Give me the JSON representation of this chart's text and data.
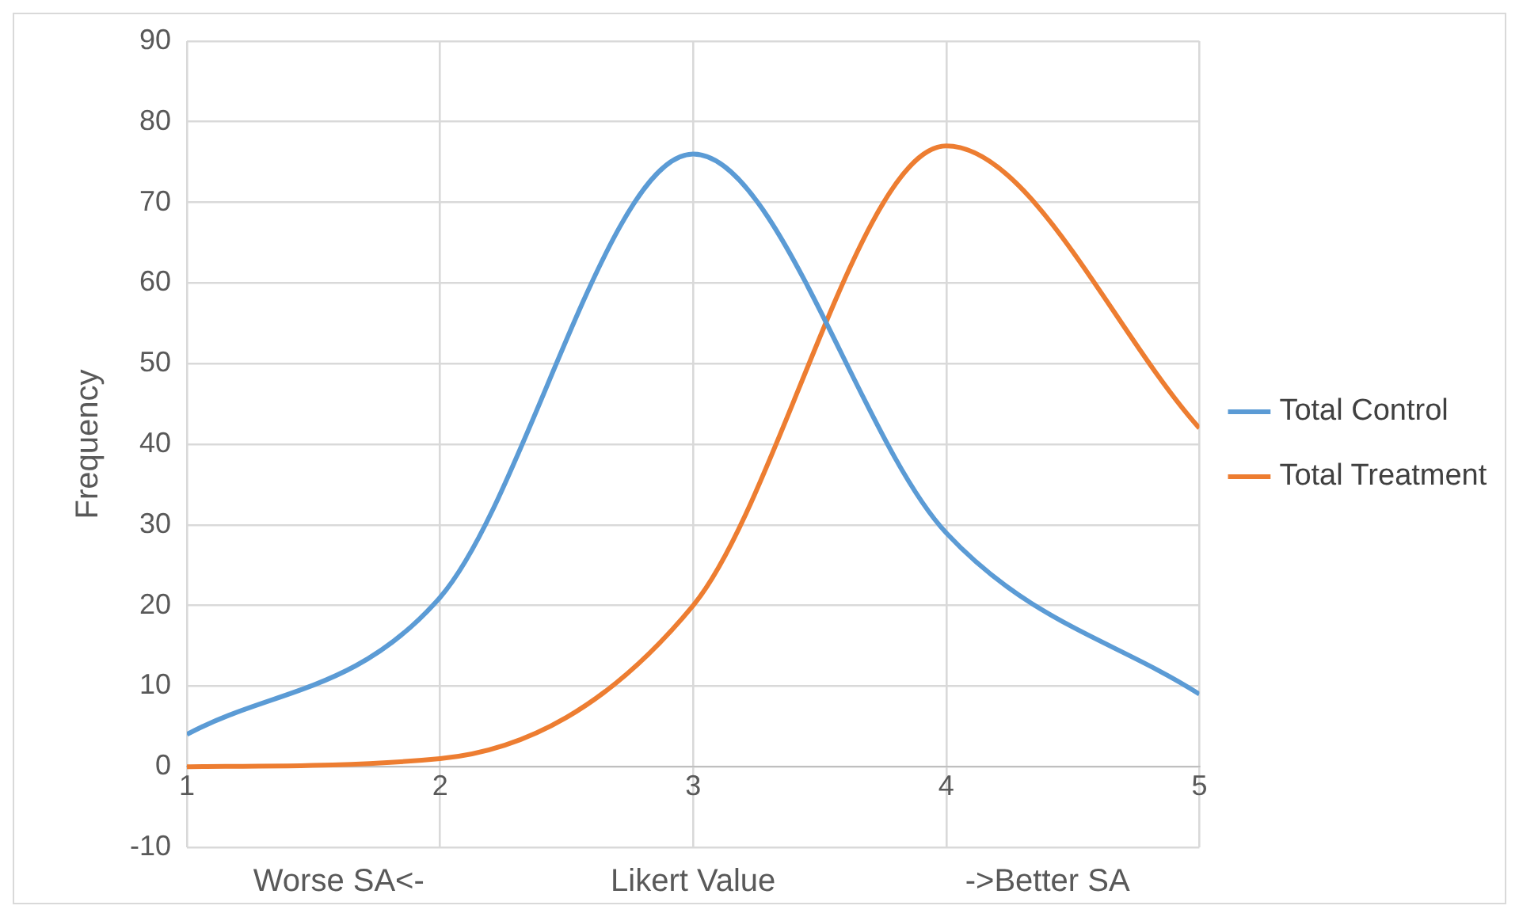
{
  "chart_data": {
    "type": "line",
    "xlabel": "Likert Value",
    "ylabel": "Frequency",
    "annotations": [
      "Worse SA<-",
      "->Better SA"
    ],
    "x": [
      1,
      2,
      3,
      4,
      5
    ],
    "series": [
      {
        "name": "Total Control",
        "color": "#5b9bd5",
        "values": [
          4,
          21,
          76,
          29,
          9
        ]
      },
      {
        "name": "Total Treatment",
        "color": "#ed7d31",
        "values": [
          0,
          1,
          20,
          77,
          42
        ]
      }
    ],
    "xlim": [
      1,
      5
    ],
    "xticks": [
      1,
      2,
      3,
      4,
      5
    ],
    "ylim": [
      -10,
      90
    ],
    "yticks": [
      -10,
      0,
      10,
      20,
      30,
      40,
      50,
      60,
      70,
      80,
      90
    ],
    "grid": true,
    "legend": "right",
    "marker": "none",
    "line_style": "solid"
  }
}
